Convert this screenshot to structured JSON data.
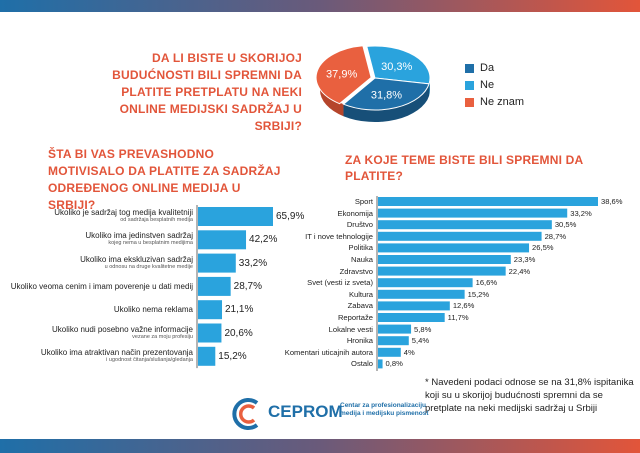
{
  "questions": {
    "q1": "Da li biste u skorijoj budućnosti bili spremni da platite pretplatu na neki online medijski sadržaj u Srbiji?",
    "q2": "Šta bi vas prevashodno motivisalo da platite za sadržaj određenog online medija u Srbiji?",
    "q3": "Za koje teme biste bili spremni da platite?"
  },
  "legend": [
    {
      "label": "Da",
      "color": "#1f6fa8"
    },
    {
      "label": "Ne",
      "color": "#2aa3dd"
    },
    {
      "label": "Ne znam",
      "color": "#e9603f"
    }
  ],
  "chart_data": [
    {
      "type": "pie",
      "title": "Da li biste u skorijoj budućnosti bili spremni da platite pretplatu na neki online medijski sadržaj u Srbiji?",
      "categories": [
        "Da",
        "Ne",
        "Ne znam"
      ],
      "values": [
        31.8,
        30.3,
        37.9
      ],
      "value_labels": [
        "31,8%",
        "30,3%",
        "37,9%"
      ],
      "colors": [
        "#1f6fa8",
        "#2aa3dd",
        "#e9603f"
      ],
      "legend": "right"
    },
    {
      "type": "bar",
      "orientation": "horizontal",
      "title": "Šta bi vas prevashodno motivisalo da platite za sadržaj određenog online medija u Srbiji?",
      "categories": [
        {
          "main": "Ukoliko je sadržaj tog medija kvalitetniji",
          "sub": "od sadržaja besplatnih medija"
        },
        {
          "main": "Ukoliko ima jedinstven sadržaj",
          "sub": "kojeg nema u besplatnim medijima"
        },
        {
          "main": "Ukoliko ima ekskluzivan sadržaj",
          "sub": "u odnosu na druge kvalitetne medije"
        },
        {
          "main": "Ukoliko veoma cenim i imam poverenje u dati medij",
          "sub": ""
        },
        {
          "main": "Ukoliko nema reklama",
          "sub": ""
        },
        {
          "main": "Ukoliko nudi posebno važne informacije",
          "sub": "vezane za moju profesiju"
        },
        {
          "main": "Ukoliko ima atraktivan način prezentovanja",
          "sub": "i ugodnost čitanja/slušanja/gledanja"
        }
      ],
      "values": [
        65.9,
        42.2,
        33.2,
        28.7,
        21.1,
        20.6,
        15.2
      ],
      "value_labels": [
        "65,9%",
        "42,2%",
        "33,2%",
        "28,7%",
        "21,1%",
        "20,6%",
        "15,2%"
      ],
      "color": "#2aa3dd"
    },
    {
      "type": "bar",
      "orientation": "horizontal",
      "title": "Za koje teme biste bili spremni da platite?",
      "categories": [
        "Sport",
        "Ekonomija",
        "Društvo",
        "IT i nove tehnologije",
        "Politika",
        "Nauka",
        "Zdravstvo",
        "Svet (vesti iz sveta)",
        "Kultura",
        "Zabava",
        "Reportaže",
        "Lokalne vesti",
        "Hronika",
        "Komentari uticajnih autora",
        "Ostalo"
      ],
      "values": [
        38.6,
        33.2,
        30.5,
        28.7,
        26.5,
        23.3,
        22.4,
        16.6,
        15.2,
        12.6,
        11.7,
        5.8,
        5.4,
        4,
        0.8
      ],
      "value_labels": [
        "38,6%",
        "33,2%",
        "30,5%",
        "28,7%",
        "26,5%",
        "23,3%",
        "22,4%",
        "16,6%",
        "15,2%",
        "12,6%",
        "11,7%",
        "5,8%",
        "5,4%",
        "4%",
        "0,8%"
      ],
      "color": "#2aa3dd"
    }
  ],
  "footnote": "* Navedeni podaci odnose se na 31,8% ispitanika koji su u skorijoj budućnosti spremni da se pretplate na neki medijski sadržaj u Srbiji",
  "branding": {
    "name": "CEPROM",
    "subtitle": "Centar za profesionalizaciju medija i medijsku pismenost"
  }
}
